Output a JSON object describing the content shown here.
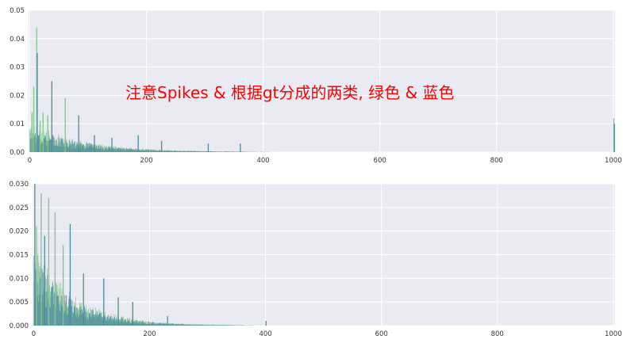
{
  "annotation": "注意Spikes & 根据gt分成的两类, 绿色 & 蓝色",
  "colors": {
    "background": "#eaeaf2",
    "grid": "#ffffff",
    "blue": "#4c8c9f",
    "green": "#86c48c",
    "annotation": "#ff0000"
  },
  "chart_data": [
    {
      "type": "bar",
      "title": "",
      "xlabel": "",
      "ylabel": "",
      "xlim": [
        -2,
        1003
      ],
      "ylim": [
        0,
        0.05
      ],
      "xticks": [
        0,
        200,
        400,
        600,
        800,
        1000
      ],
      "yticks": [
        0.0,
        0.01,
        0.02,
        0.03,
        0.04,
        0.05
      ],
      "xtick_labels": [
        "0",
        "200",
        "400",
        "600",
        "800",
        "1000"
      ],
      "ytick_labels": [
        "0.00",
        "0.01",
        "0.02",
        "0.03",
        "0.04",
        "0.05"
      ],
      "grid": true,
      "decay": {
        "n": 1000,
        "amplitude": 0.008,
        "scale": 90
      },
      "spikes": [
        {
          "x": 3,
          "y": 0.014,
          "color": "green"
        },
        {
          "x": 6,
          "y": 0.023,
          "color": "green"
        },
        {
          "x": 11,
          "y": 0.044,
          "color": "green"
        },
        {
          "x": 12,
          "y": 0.035,
          "color": "blue"
        },
        {
          "x": 17,
          "y": 0.011,
          "color": "green"
        },
        {
          "x": 22,
          "y": 0.014,
          "color": "green"
        },
        {
          "x": 30,
          "y": 0.013,
          "color": "green"
        },
        {
          "x": 37,
          "y": 0.025,
          "color": "blue"
        },
        {
          "x": 60,
          "y": 0.019,
          "color": "green"
        },
        {
          "x": 83,
          "y": 0.013,
          "color": "blue"
        },
        {
          "x": 110,
          "y": 0.006,
          "color": "blue"
        },
        {
          "x": 140,
          "y": 0.005,
          "color": "blue"
        },
        {
          "x": 185,
          "y": 0.006,
          "color": "blue"
        },
        {
          "x": 225,
          "y": 0.004,
          "color": "blue"
        },
        {
          "x": 305,
          "y": 0.003,
          "color": "blue"
        },
        {
          "x": 360,
          "y": 0.003,
          "color": "blue"
        },
        {
          "x": 1000,
          "y": 0.012,
          "color": "green"
        },
        {
          "x": 1001,
          "y": 0.01,
          "color": "blue"
        }
      ]
    },
    {
      "type": "bar",
      "title": "",
      "xlabel": "",
      "ylabel": "",
      "xlim": [
        -2,
        1003
      ],
      "ylim": [
        0,
        0.03
      ],
      "xticks": [
        0,
        200,
        400,
        600,
        800,
        1000
      ],
      "yticks": [
        0.0,
        0.005,
        0.01,
        0.015,
        0.02,
        0.025,
        0.03
      ],
      "xtick_labels": [
        "0",
        "200",
        "400",
        "600",
        "800",
        "1000"
      ],
      "ytick_labels": [
        "0.000",
        "0.005",
        "0.010",
        "0.015",
        "0.020",
        "0.025",
        "0.030"
      ],
      "grid": true,
      "decay": {
        "n": 560,
        "amplitude": 0.013,
        "scale": 70
      },
      "spikes": [
        {
          "x": 1,
          "y": 0.03,
          "color": "blue"
        },
        {
          "x": 4,
          "y": 0.021,
          "color": "green"
        },
        {
          "x": 12,
          "y": 0.028,
          "color": "green"
        },
        {
          "x": 18,
          "y": 0.019,
          "color": "blue"
        },
        {
          "x": 25,
          "y": 0.027,
          "color": "green"
        },
        {
          "x": 36,
          "y": 0.024,
          "color": "green"
        },
        {
          "x": 50,
          "y": 0.017,
          "color": "green"
        },
        {
          "x": 62,
          "y": 0.0215,
          "color": "blue"
        },
        {
          "x": 85,
          "y": 0.011,
          "color": "blue"
        },
        {
          "x": 120,
          "y": 0.01,
          "color": "blue"
        },
        {
          "x": 145,
          "y": 0.006,
          "color": "blue"
        },
        {
          "x": 170,
          "y": 0.005,
          "color": "blue"
        },
        {
          "x": 230,
          "y": 0.002,
          "color": "blue"
        },
        {
          "x": 400,
          "y": 0.001,
          "color": "blue"
        }
      ]
    }
  ]
}
